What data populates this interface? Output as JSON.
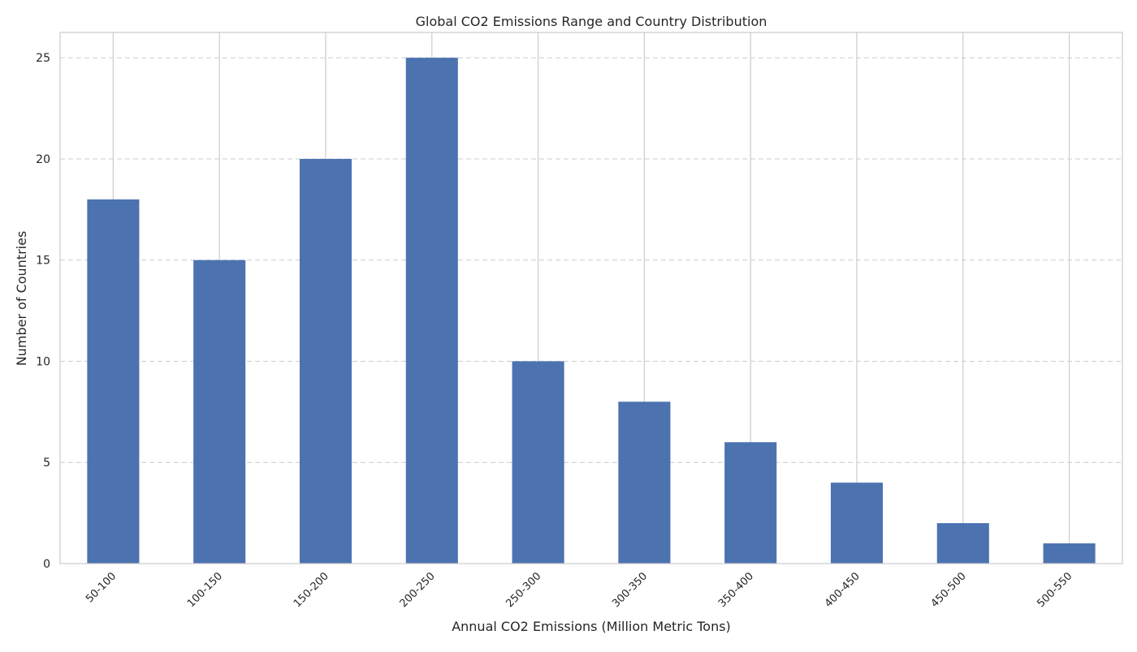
{
  "chart_data": {
    "type": "bar",
    "title": "Global CO2 Emissions Range and Country Distribution",
    "xlabel": "Annual CO2 Emissions (Million Metric Tons)",
    "ylabel": "Number of Countries",
    "categories": [
      "50-100",
      "100-150",
      "150-200",
      "200-250",
      "250-300",
      "300-350",
      "350-400",
      "400-450",
      "450-500",
      "500-550"
    ],
    "values": [
      18,
      15,
      20,
      25,
      10,
      8,
      6,
      4,
      2,
      1
    ],
    "ylim": [
      0,
      26.25
    ],
    "yticks": [
      0,
      5,
      10,
      15,
      20,
      25
    ],
    "grid": true,
    "bar_color": "#4c72b0",
    "grid_color": "#cccccc",
    "spine_color": "#cccccc"
  }
}
